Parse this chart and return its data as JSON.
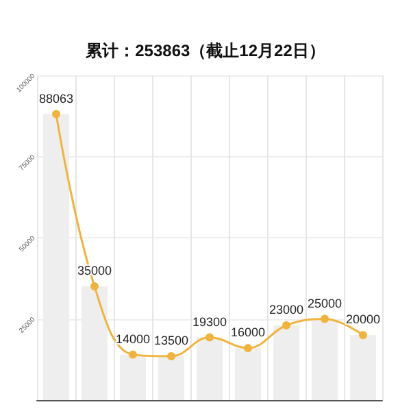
{
  "chart_data": {
    "type": "bar",
    "title": "累计：253863（截止12月22日）",
    "categories": [
      null,
      null,
      null,
      null,
      null,
      null,
      null,
      null,
      null
    ],
    "series": [
      {
        "color": "#eeeeee",
        "values": [
          88063,
          35000,
          14000,
          13500,
          19300,
          16000,
          23000,
          25000,
          20000
        ]
      },
      {
        "type": "line",
        "color": "#f0b43c",
        "values": [
          88063,
          35000,
          14000,
          13500,
          19300,
          16000,
          23000,
          25000,
          20000
        ],
        "data_labels": true
      }
    ],
    "ylim": [
      0,
      100000
    ],
    "yticks": [
      25000,
      50000,
      75000,
      100000
    ],
    "grid": true,
    "marker": "circle"
  }
}
